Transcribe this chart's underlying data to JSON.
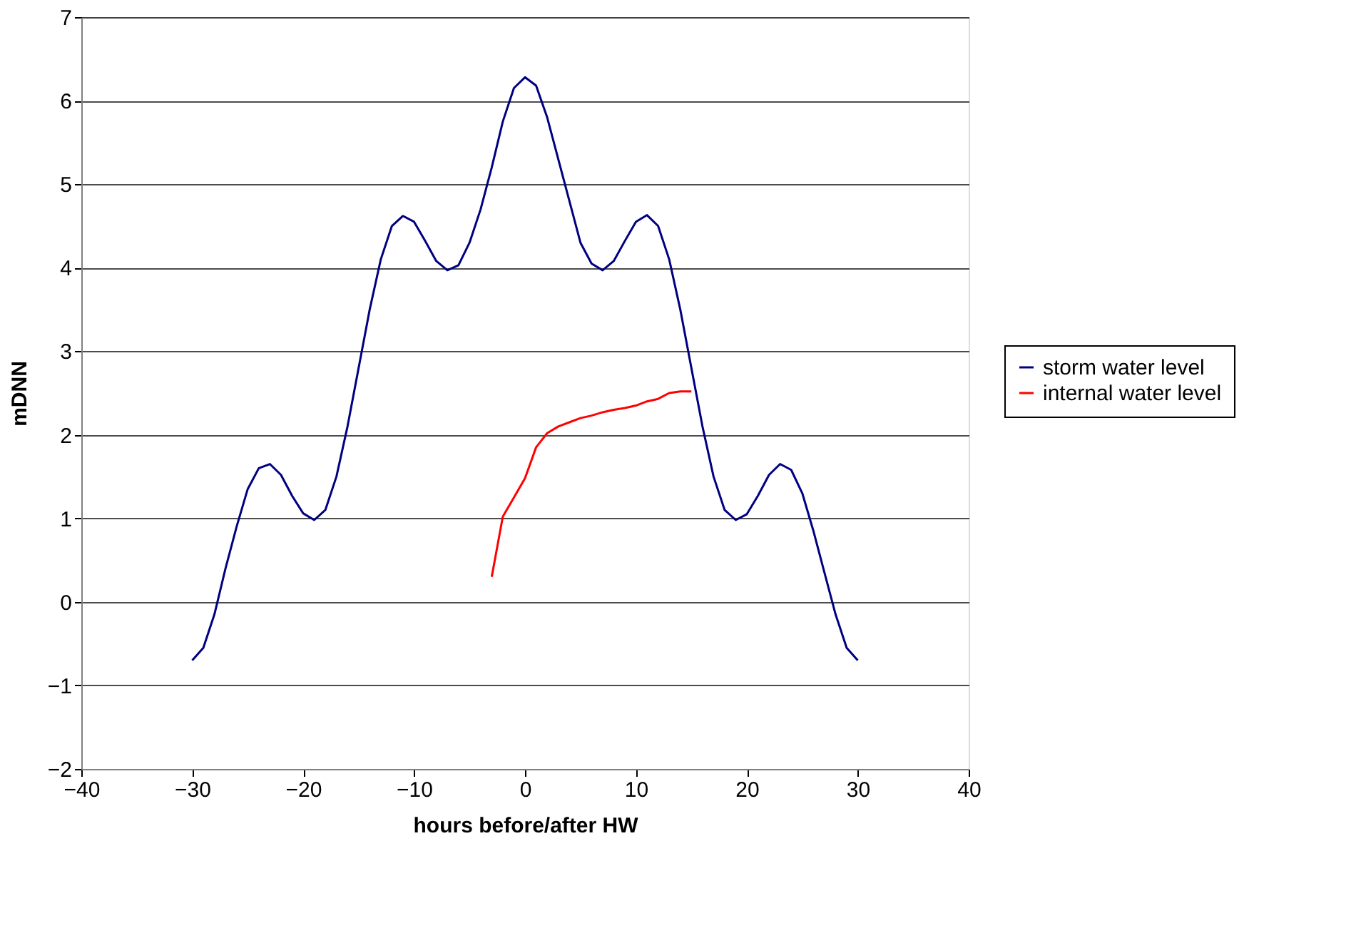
{
  "chart_data": {
    "type": "line",
    "xlabel": "hours before/after HW",
    "ylabel": "mDNN",
    "xlim": [
      -40,
      40
    ],
    "xticks": [
      -40,
      -30,
      -20,
      -10,
      0,
      10,
      20,
      30,
      40
    ],
    "ylim": [
      -2,
      7
    ],
    "yticks": [
      -2,
      -1,
      0,
      1,
      2,
      3,
      4,
      5,
      6,
      7
    ],
    "grid": "y",
    "legend": "right",
    "marker": "none",
    "line_style": "solid",
    "series": [
      {
        "name": "storm water level",
        "color": "#000080",
        "x": [
          -30,
          -29,
          -28,
          -27,
          -26,
          -25,
          -24,
          -23,
          -22,
          -21,
          -20,
          -19,
          -18,
          -17,
          -16,
          -15,
          -14,
          -13,
          -12,
          -11,
          -10,
          -9,
          -8,
          -7,
          -6,
          -5,
          -4,
          -3,
          -2,
          -1,
          0,
          1,
          2,
          3,
          4,
          5,
          6,
          7,
          8,
          9,
          10,
          11,
          12,
          13,
          14,
          15,
          16,
          17,
          18,
          19,
          20,
          21,
          22,
          23,
          24,
          25,
          26,
          27,
          28,
          29,
          30
        ],
        "values": [
          -0.7,
          -0.55,
          -0.15,
          0.4,
          0.9,
          1.35,
          1.6,
          1.65,
          1.52,
          1.27,
          1.06,
          0.98,
          1.1,
          1.5,
          2.1,
          2.8,
          3.5,
          4.1,
          4.5,
          4.62,
          4.55,
          4.32,
          4.08,
          3.97,
          4.03,
          4.3,
          4.7,
          5.2,
          5.75,
          6.15,
          6.28,
          6.18,
          5.8,
          5.3,
          4.8,
          4.3,
          4.05,
          3.97,
          4.08,
          4.32,
          4.55,
          4.63,
          4.5,
          4.1,
          3.5,
          2.8,
          2.1,
          1.5,
          1.1,
          0.98,
          1.05,
          1.27,
          1.52,
          1.65,
          1.58,
          1.3,
          0.85,
          0.35,
          -0.15,
          -0.55,
          -0.7
        ]
      },
      {
        "name": "internal water level",
        "color": "#ff0000",
        "x": [
          -3,
          -2,
          -1,
          0,
          1,
          2,
          3,
          4,
          5,
          6,
          7,
          8,
          9,
          10,
          11,
          12,
          13,
          14,
          15
        ],
        "values": [
          0.3,
          1.02,
          1.25,
          1.48,
          1.85,
          2.02,
          2.1,
          2.15,
          2.2,
          2.23,
          2.27,
          2.3,
          2.32,
          2.35,
          2.4,
          2.43,
          2.5,
          2.52,
          2.52
        ]
      }
    ]
  }
}
